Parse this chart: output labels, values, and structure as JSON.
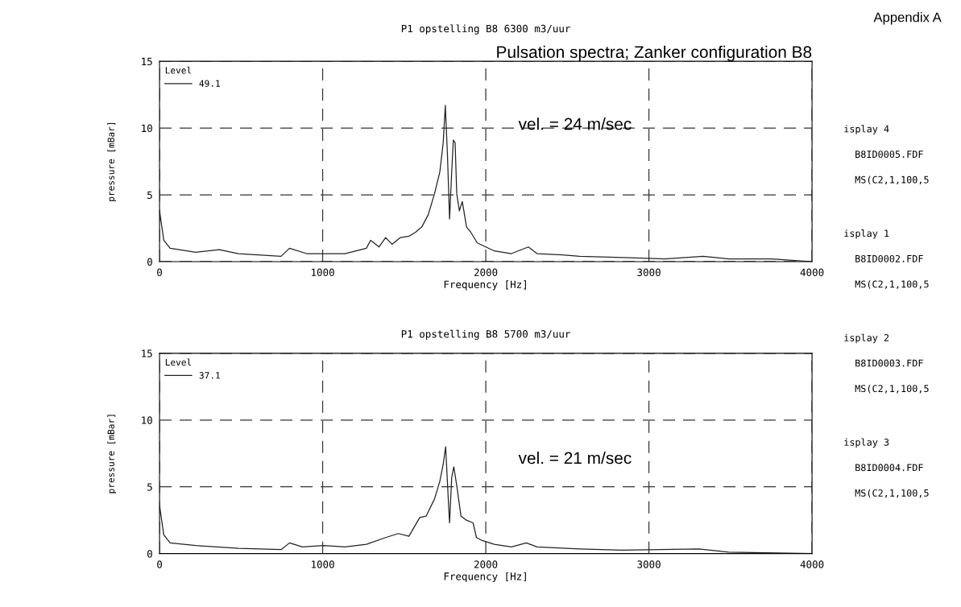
{
  "chart_data": [
    {
      "type": "line",
      "title": "P1 opstelling B8 6300 m3/uur",
      "xlabel": "Frequency [Hz]",
      "ylabel": "pressure [mBar]",
      "legend_title": "Level",
      "legend": "top left",
      "grid": true,
      "xlim": [
        0,
        4000
      ],
      "xticks": [
        0,
        1000,
        2000,
        3000,
        4000
      ],
      "ylim": [
        0,
        15
      ],
      "yticks": [
        0,
        5,
        10,
        15
      ],
      "annotations": [
        "Pulsation spectra; Zanker configuration B8",
        "vel. = 24 m/sec"
      ],
      "series": [
        {
          "name": "49.1",
          "color": "#222222",
          "x": [
            0,
            26,
            65,
            222,
            366,
            484,
            745,
            797,
            902,
            1007,
            1137,
            1268,
            1294,
            1346,
            1386,
            1425,
            1477,
            1529,
            1569,
            1608,
            1647,
            1686,
            1718,
            1739,
            1752,
            1765,
            1778,
            1791,
            1801,
            1812,
            1822,
            1838,
            1856,
            1882,
            1908,
            1948,
            2000,
            2052,
            2157,
            2261,
            2314,
            2471,
            2575,
            2837,
            3098,
            3333,
            3490,
            3752,
            4000
          ],
          "values": [
            3.8,
            1.6,
            1.0,
            0.7,
            0.9,
            0.6,
            0.4,
            1.0,
            0.6,
            0.6,
            0.6,
            1.0,
            1.6,
            1.1,
            1.8,
            1.3,
            1.8,
            1.9,
            2.2,
            2.6,
            3.5,
            5.1,
            6.7,
            8.9,
            11.7,
            8.0,
            3.2,
            6.7,
            9.1,
            8.9,
            5.1,
            3.8,
            4.5,
            2.6,
            2.2,
            1.4,
            1.1,
            0.8,
            0.6,
            1.1,
            0.6,
            0.5,
            0.4,
            0.3,
            0.2,
            0.4,
            0.2,
            0.2,
            0.0
          ]
        }
      ]
    },
    {
      "type": "line",
      "title": "P1 opstelling B8 5700 m3/uur",
      "xlabel": "Frequency [Hz]",
      "ylabel": "pressure [mBar]",
      "legend_title": "Level",
      "legend": "top left",
      "grid": true,
      "xlim": [
        0,
        4000
      ],
      "xticks": [
        0,
        1000,
        2000,
        3000,
        4000
      ],
      "ylim": [
        0,
        15
      ],
      "yticks": [
        0,
        5,
        10,
        15
      ],
      "annotations": [
        "vel. = 21 m/sec"
      ],
      "series": [
        {
          "name": "37.1",
          "color": "#222222",
          "x": [
            0,
            26,
            65,
            222,
            484,
            745,
            797,
            876,
            1007,
            1137,
            1268,
            1386,
            1464,
            1529,
            1595,
            1634,
            1686,
            1718,
            1739,
            1754,
            1770,
            1778,
            1791,
            1804,
            1822,
            1848,
            1882,
            1922,
            1943,
            1974,
            2052,
            2157,
            2249,
            2314,
            2575,
            2837,
            3307,
            3490,
            4000
          ],
          "values": [
            3.6,
            1.4,
            0.8,
            0.6,
            0.4,
            0.3,
            0.8,
            0.5,
            0.6,
            0.5,
            0.7,
            1.2,
            1.5,
            1.3,
            2.7,
            2.8,
            4.1,
            5.4,
            6.7,
            8.0,
            4.1,
            2.3,
            5.7,
            6.5,
            5.1,
            2.8,
            2.5,
            2.3,
            1.2,
            1.0,
            0.7,
            0.5,
            0.8,
            0.5,
            0.35,
            0.26,
            0.35,
            0.1,
            0.0
          ]
        }
      ]
    },
    {
      "type": "other",
      "annotations": [
        "Appendix A",
        "isplay 4",
        "B8ID0005.FDF",
        "MS(C2,1,100,5",
        "isplay 1",
        "B8ID0002.FDF",
        "MS(C2,1,100,5",
        "isplay 2",
        "B8ID0003.FDF",
        "MS(C2,1,100,5",
        "isplay 3",
        "B8ID0004.FDF",
        "MS(C2,1,100,5"
      ]
    }
  ]
}
